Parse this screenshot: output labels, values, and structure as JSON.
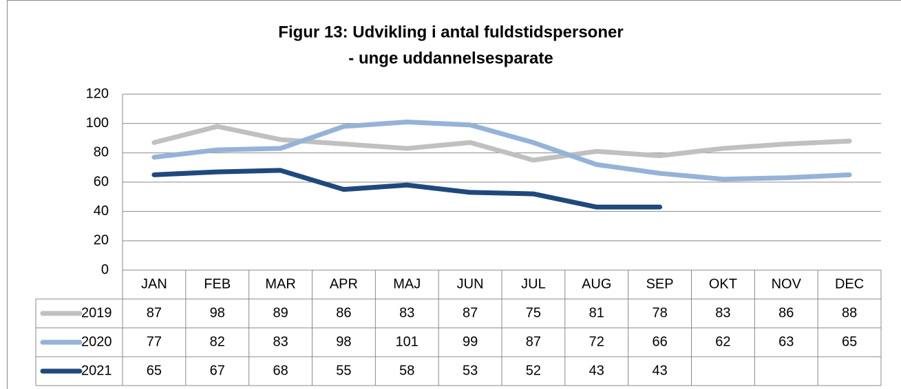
{
  "chart_data": {
    "type": "line",
    "title": [
      "Figur 13: Udvikling i antal fuldstidspersoner",
      "- unge uddannelsesparate"
    ],
    "categories": [
      "JAN",
      "FEB",
      "MAR",
      "APR",
      "MAJ",
      "JUN",
      "JUL",
      "AUG",
      "SEP",
      "OKT",
      "NOV",
      "DEC"
    ],
    "series": [
      {
        "name": "2019",
        "color": "#c0c0c0",
        "values": [
          87,
          98,
          89,
          86,
          83,
          87,
          75,
          81,
          78,
          83,
          86,
          88
        ]
      },
      {
        "name": "2020",
        "color": "#95b3d7",
        "values": [
          77,
          82,
          83,
          98,
          101,
          99,
          87,
          72,
          66,
          62,
          63,
          65
        ]
      },
      {
        "name": "2021",
        "color": "#1f497d",
        "values": [
          65,
          67,
          68,
          55,
          58,
          53,
          52,
          43,
          43,
          null,
          null,
          null
        ]
      }
    ],
    "ylim": [
      0,
      120
    ],
    "yticks": [
      0,
      20,
      40,
      60,
      80,
      100,
      120
    ],
    "grid": true,
    "data_table": true
  }
}
